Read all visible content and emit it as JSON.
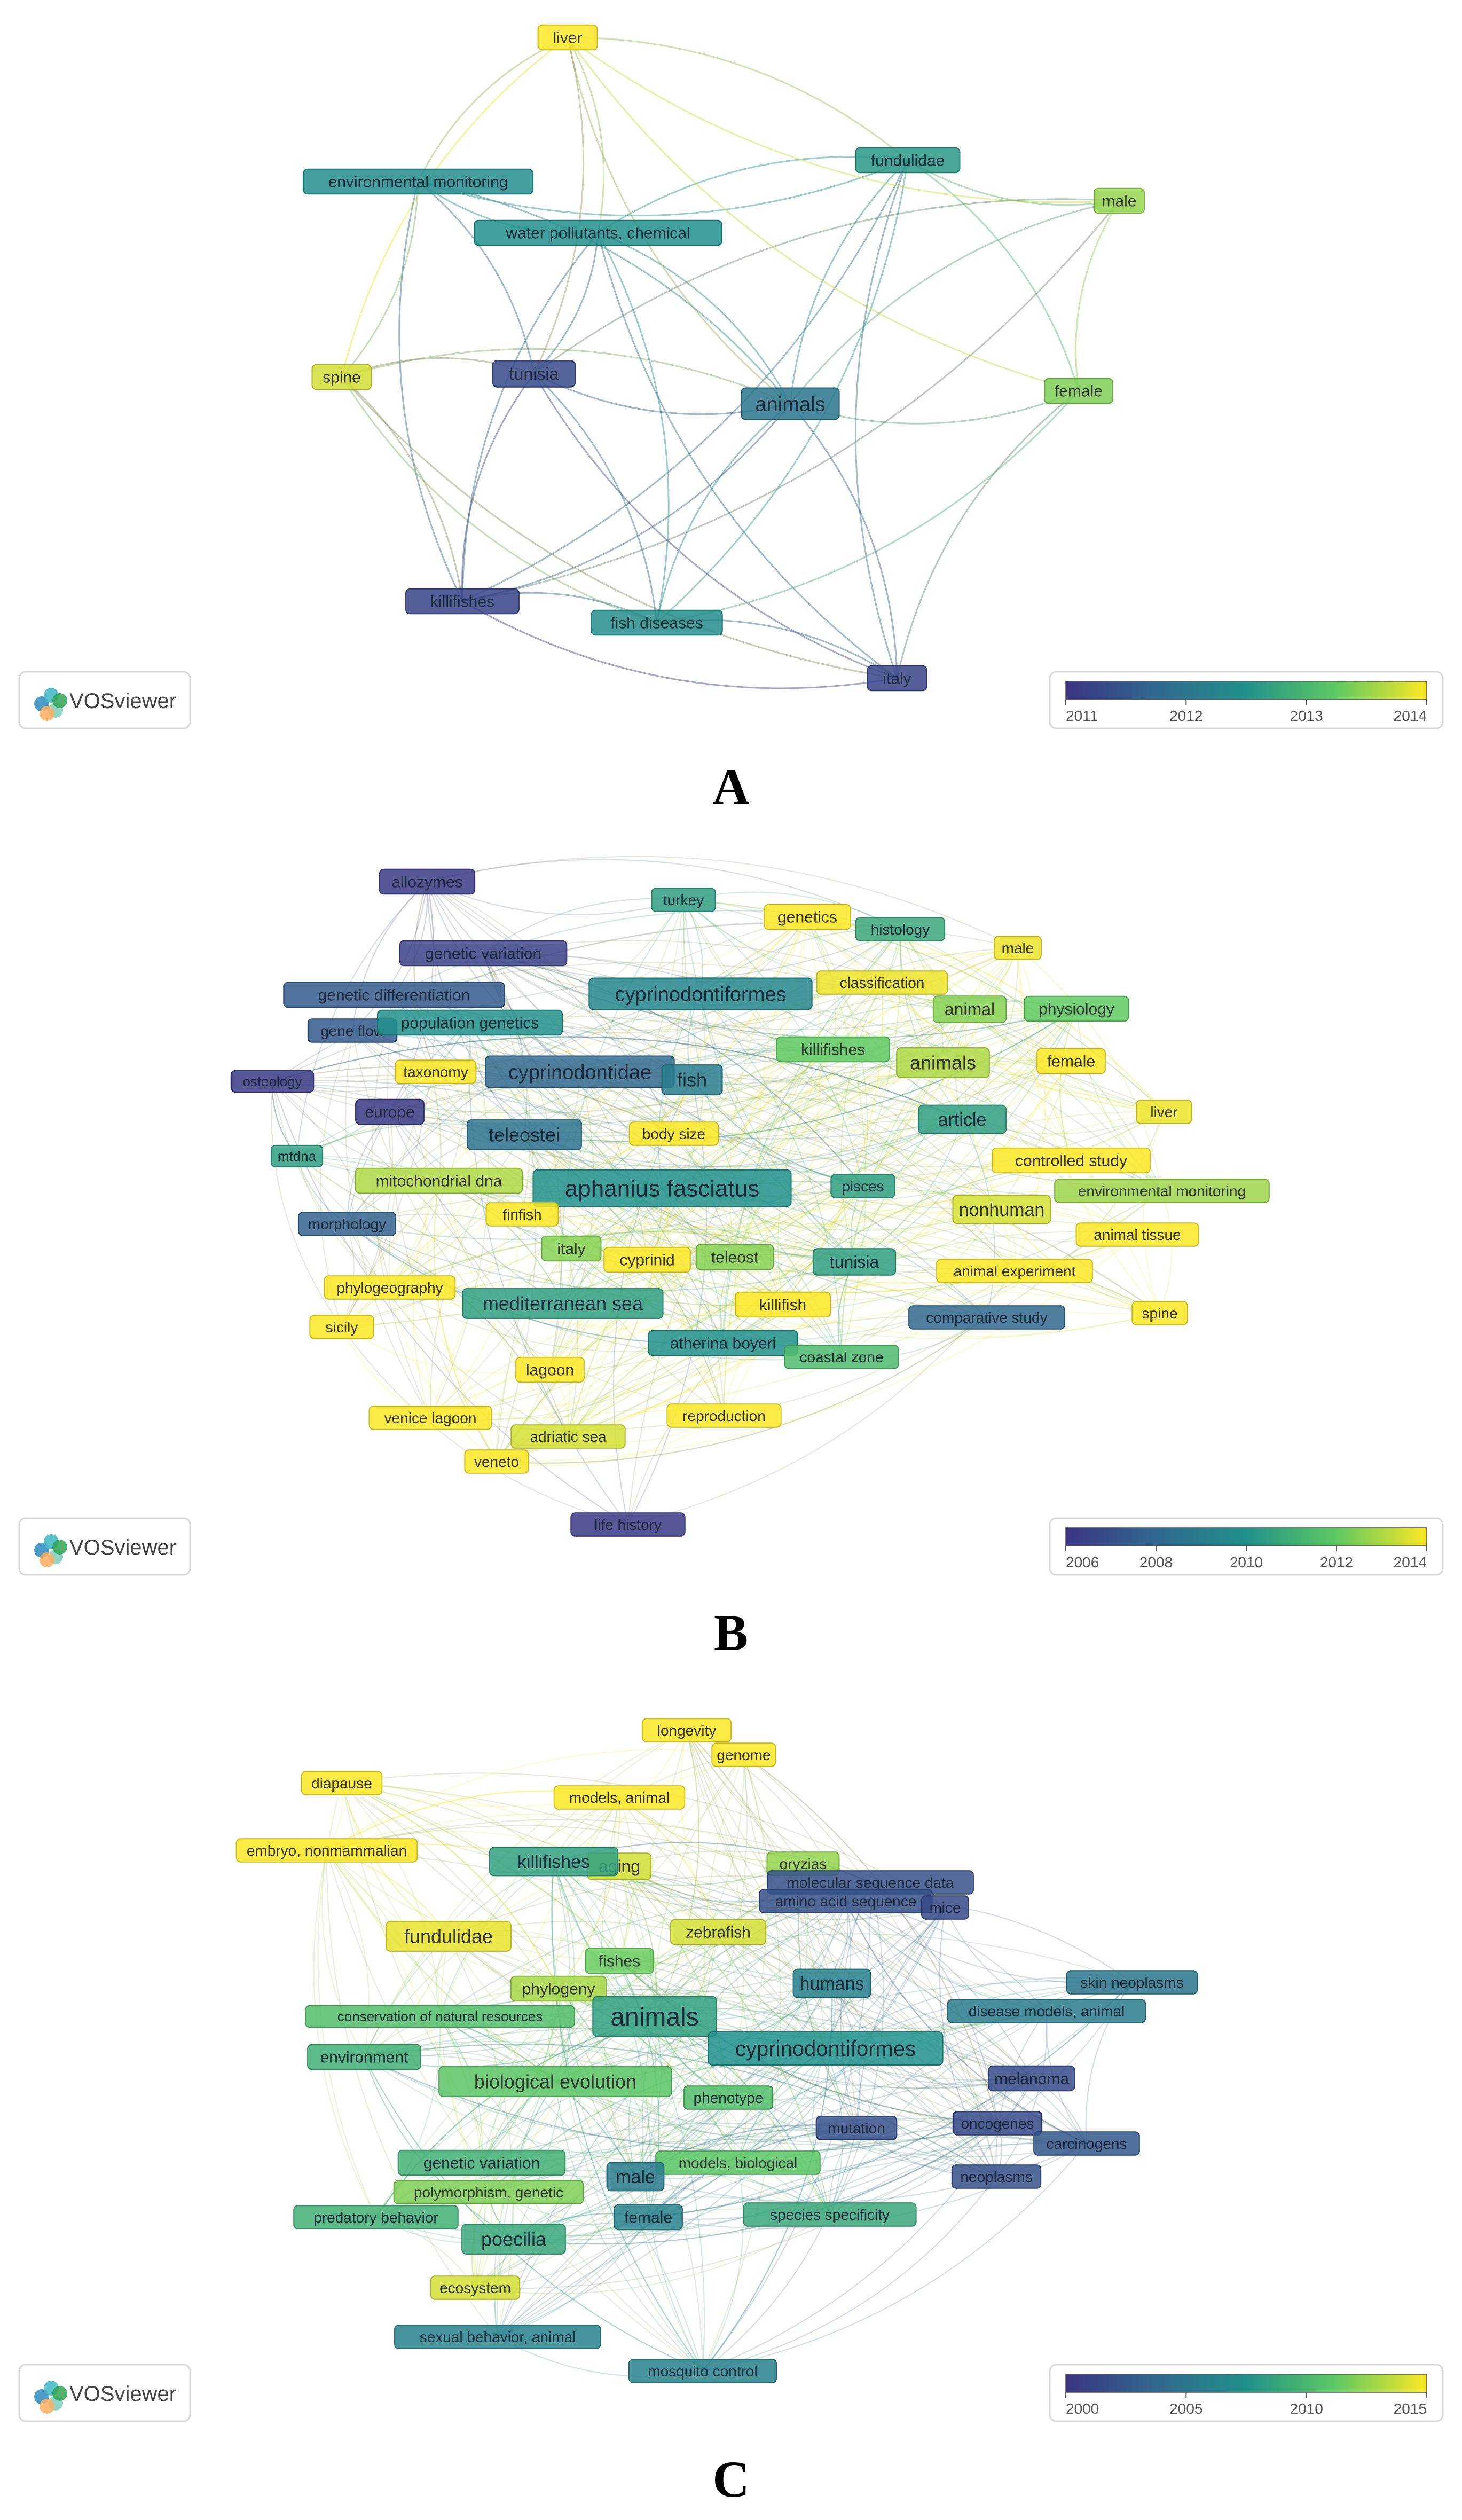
{
  "panels": [
    {
      "letter": "A",
      "brand": "VOSviewer",
      "colorbar": {
        "min": 2011,
        "max": 2014,
        "ticks": [
          "2011",
          "2012",
          "2013",
          "2014"
        ]
      },
      "nodes": [
        {
          "label": "liver",
          "year": 2014.0
        },
        {
          "label": "environmental monitoring",
          "year": 2012.4
        },
        {
          "label": "fundulidae",
          "year": 2012.6
        },
        {
          "label": "male",
          "year": 2013.5
        },
        {
          "label": "water pollutants, chemical",
          "year": 2012.5
        },
        {
          "label": "spine",
          "year": 2013.8
        },
        {
          "label": "tunisia",
          "year": 2011.3
        },
        {
          "label": "animals",
          "year": 2012.0
        },
        {
          "label": "female",
          "year": 2013.4
        },
        {
          "label": "killifishes",
          "year": 2011.2
        },
        {
          "label": "fish diseases",
          "year": 2012.4
        },
        {
          "label": "italy",
          "year": 2011.2
        }
      ]
    },
    {
      "letter": "B",
      "brand": "VOSviewer",
      "colorbar": {
        "min": 2006,
        "max": 2014,
        "ticks": [
          "2006",
          "2008",
          "2010",
          "2012",
          "2014"
        ]
      },
      "nodes": [
        {
          "label": "allozymes",
          "year": 2006.2
        },
        {
          "label": "turkey",
          "year": 2010.5
        },
        {
          "label": "genetics",
          "year": 2014.0
        },
        {
          "label": "histology",
          "year": 2010.8
        },
        {
          "label": "male",
          "year": 2013.8
        },
        {
          "label": "genetic variation",
          "year": 2006.5
        },
        {
          "label": "classification",
          "year": 2013.8
        },
        {
          "label": "genetic differentiation",
          "year": 2007.5
        },
        {
          "label": "cyprinodontiformes",
          "year": 2009.5
        },
        {
          "label": "animal",
          "year": 2012.5
        },
        {
          "label": "physiology",
          "year": 2012.0
        },
        {
          "label": "gene flow",
          "year": 2007.5
        },
        {
          "label": "population genetics",
          "year": 2010.0
        },
        {
          "label": "killifishes",
          "year": 2012.0
        },
        {
          "label": "animals",
          "year": 2013.0
        },
        {
          "label": "female",
          "year": 2014.0
        },
        {
          "label": "taxonomy",
          "year": 2014.0
        },
        {
          "label": "cyprinodontidae",
          "year": 2008.0
        },
        {
          "label": "fish",
          "year": 2009.0
        },
        {
          "label": "osteology",
          "year": 2006.2
        },
        {
          "label": "europe",
          "year": 2006.2
        },
        {
          "label": "liver",
          "year": 2013.8
        },
        {
          "label": "teleostei",
          "year": 2008.5
        },
        {
          "label": "body size",
          "year": 2014.0
        },
        {
          "label": "article",
          "year": 2010.5
        },
        {
          "label": "controlled study",
          "year": 2014.0
        },
        {
          "label": "mtdna",
          "year": 2010.5
        },
        {
          "label": "mitochondrial dna",
          "year": 2013.0
        },
        {
          "label": "aphanius fasciatus",
          "year": 2010.0
        },
        {
          "label": "pisces",
          "year": 2010.5
        },
        {
          "label": "environmental monitoring",
          "year": 2012.8
        },
        {
          "label": "finfish",
          "year": 2014.0
        },
        {
          "label": "nonhuman",
          "year": 2013.5
        },
        {
          "label": "morphology",
          "year": 2007.8
        },
        {
          "label": "animal tissue",
          "year": 2014.0
        },
        {
          "label": "italy",
          "year": 2012.5
        },
        {
          "label": "cyprinid",
          "year": 2014.0
        },
        {
          "label": "teleost",
          "year": 2012.5
        },
        {
          "label": "tunisia",
          "year": 2010.5
        },
        {
          "label": "animal experiment",
          "year": 2014.0
        },
        {
          "label": "phylogeography",
          "year": 2014.0
        },
        {
          "label": "mediterranean sea",
          "year": 2010.5
        },
        {
          "label": "killifish",
          "year": 2014.0
        },
        {
          "label": "comparative study",
          "year": 2008.0
        },
        {
          "label": "spine",
          "year": 2014.0
        },
        {
          "label": "sicily",
          "year": 2014.0
        },
        {
          "label": "atherina boyeri",
          "year": 2010.0
        },
        {
          "label": "coastal zone",
          "year": 2011.5
        },
        {
          "label": "lagoon",
          "year": 2014.0
        },
        {
          "label": "venice lagoon",
          "year": 2014.0
        },
        {
          "label": "reproduction",
          "year": 2014.0
        },
        {
          "label": "adriatic sea",
          "year": 2013.5
        },
        {
          "label": "veneto",
          "year": 2014.0
        },
        {
          "label": "life history",
          "year": 2006.2
        }
      ]
    },
    {
      "letter": "C",
      "brand": "VOSviewer",
      "colorbar": {
        "min": 2000,
        "max": 2015,
        "ticks": [
          "2000",
          "2005",
          "2010",
          "2015"
        ]
      },
      "nodes": [
        {
          "label": "longevity",
          "year": 2015.0
        },
        {
          "label": "genome",
          "year": 2015.0
        },
        {
          "label": "diapause",
          "year": 2015.0
        },
        {
          "label": "models, animal",
          "year": 2015.0
        },
        {
          "label": "embryo, nonmammalian",
          "year": 2015.0
        },
        {
          "label": "aging",
          "year": 2014.0
        },
        {
          "label": "killifishes",
          "year": 2008.5
        },
        {
          "label": "oryzias",
          "year": 2012.5
        },
        {
          "label": "molecular sequence data",
          "year": 2002.0
        },
        {
          "label": "amino acid sequence",
          "year": 2002.0
        },
        {
          "label": "mice",
          "year": 2001.5
        },
        {
          "label": "fundulidae",
          "year": 2014.5
        },
        {
          "label": "zebrafish",
          "year": 2014.0
        },
        {
          "label": "fishes",
          "year": 2011.5
        },
        {
          "label": "humans",
          "year": 2006.0
        },
        {
          "label": "skin neoplasms",
          "year": 2005.0
        },
        {
          "label": "phylogeny",
          "year": 2013.0
        },
        {
          "label": "disease models, animal",
          "year": 2005.5
        },
        {
          "label": "conservation of natural resources",
          "year": 2010.5
        },
        {
          "label": "animals",
          "year": 2008.5
        },
        {
          "label": "cyprinodontiformes",
          "year": 2007.5
        },
        {
          "label": "environment",
          "year": 2009.5
        },
        {
          "label": "melanoma",
          "year": 2001.5
        },
        {
          "label": "biological evolution",
          "year": 2011.0
        },
        {
          "label": "phenotype",
          "year": 2010.5
        },
        {
          "label": "oncogenes",
          "year": 2001.5
        },
        {
          "label": "mutation",
          "year": 2002.0
        },
        {
          "label": "carcinogens",
          "year": 2002.5
        },
        {
          "label": "genetic variation",
          "year": 2009.5
        },
        {
          "label": "models, biological",
          "year": 2011.0
        },
        {
          "label": "male",
          "year": 2005.5
        },
        {
          "label": "neoplasms",
          "year": 2002.0
        },
        {
          "label": "polymorphism, genetic",
          "year": 2012.0
        },
        {
          "label": "predatory behavior",
          "year": 2009.5
        },
        {
          "label": "female",
          "year": 2006.0
        },
        {
          "label": "species specificity",
          "year": 2009.0
        },
        {
          "label": "poecilia",
          "year": 2009.0
        },
        {
          "label": "ecosystem",
          "year": 2014.0
        },
        {
          "label": "sexual behavior, animal",
          "year": 2006.0
        },
        {
          "label": "mosquito control",
          "year": 2006.0
        }
      ]
    }
  ]
}
